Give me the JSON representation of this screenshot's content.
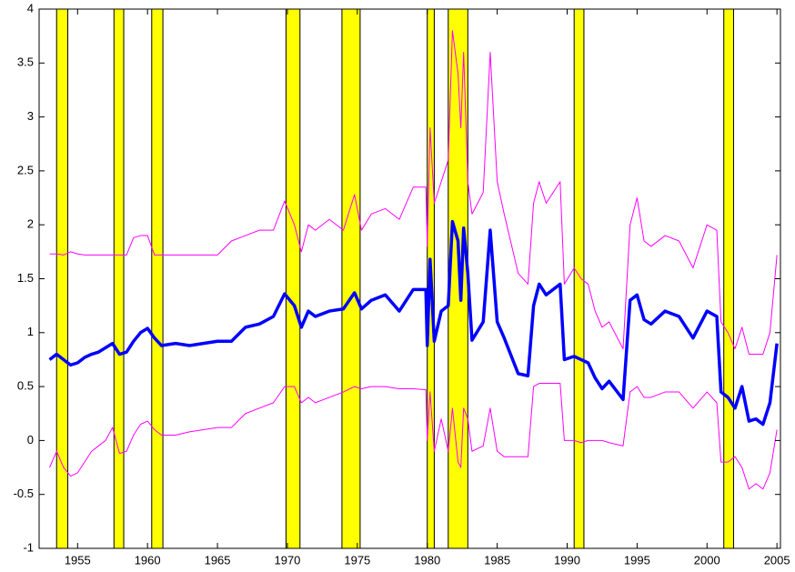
{
  "chart_data": {
    "type": "line",
    "x": [
      1953,
      1953.5,
      1954,
      1954.5,
      1955,
      1955.5,
      1956,
      1956.5,
      1957,
      1957.5,
      1958,
      1958.5,
      1959,
      1959.5,
      1960,
      1960.5,
      1961,
      1962,
      1963,
      1964,
      1965,
      1966,
      1967,
      1968,
      1969,
      1969.8,
      1970.5,
      1971,
      1971.5,
      1972,
      1973,
      1974,
      1974.8,
      1975.3,
      1976,
      1977,
      1978,
      1979,
      1979.9,
      1980.0,
      1980.2,
      1980.5,
      1981,
      1981.5,
      1981.8,
      1982.2,
      1982.4,
      1982.6,
      1982.9,
      1983.2,
      1984,
      1984.5,
      1985,
      1985.5,
      1986.5,
      1987.2,
      1987.6,
      1988,
      1988.5,
      1989.5,
      1989.8,
      1990.5,
      1991,
      1991.5,
      1992,
      1992.5,
      1993,
      1994,
      1994.5,
      1995,
      1995.5,
      1996,
      1997,
      1998,
      1999,
      2000,
      2000.7,
      2001,
      2001.5,
      2002,
      2002.5,
      2003,
      2003.5,
      2004,
      2004.5,
      2005
    ],
    "series": [
      {
        "color": "#ff00ff",
        "width": 1,
        "values": [
          1.73,
          1.73,
          1.72,
          1.75,
          1.73,
          1.72,
          1.72,
          1.72,
          1.72,
          1.72,
          1.72,
          1.72,
          1.88,
          1.9,
          1.9,
          1.72,
          1.72,
          1.72,
          1.72,
          1.72,
          1.72,
          1.85,
          1.9,
          1.95,
          1.95,
          2.22,
          2.0,
          1.75,
          2.0,
          1.95,
          2.05,
          1.95,
          2.28,
          1.95,
          2.1,
          2.15,
          2.05,
          2.35,
          2.35,
          1.8,
          2.9,
          2.2,
          2.4,
          2.6,
          3.8,
          3.4,
          2.9,
          3.6,
          2.4,
          2.1,
          2.3,
          3.6,
          2.4,
          2.1,
          1.55,
          1.45,
          2.2,
          2.4,
          2.2,
          2.4,
          1.45,
          1.6,
          1.5,
          1.45,
          1.2,
          1.05,
          1.1,
          0.85,
          2.0,
          2.25,
          1.85,
          1.8,
          1.9,
          1.85,
          1.6,
          2.0,
          1.95,
          1.1,
          1.0,
          0.85,
          1.05,
          0.8,
          0.8,
          0.8,
          1.0,
          1.72
        ]
      },
      {
        "color": "#ff00ff",
        "width": 1,
        "values": [
          -0.25,
          -0.1,
          -0.25,
          -0.33,
          -0.3,
          -0.2,
          -0.1,
          -0.05,
          0.0,
          0.12,
          -0.12,
          -0.1,
          0.05,
          0.15,
          0.18,
          0.1,
          0.05,
          0.05,
          0.08,
          0.1,
          0.12,
          0.12,
          0.25,
          0.3,
          0.35,
          0.5,
          0.5,
          0.35,
          0.4,
          0.35,
          0.4,
          0.45,
          0.5,
          0.48,
          0.5,
          0.5,
          0.48,
          0.48,
          0.47,
          0.0,
          0.45,
          -0.1,
          0.2,
          -0.1,
          0.3,
          -0.2,
          -0.25,
          0.3,
          0.2,
          -0.1,
          -0.05,
          0.3,
          -0.1,
          -0.15,
          -0.15,
          -0.15,
          0.5,
          0.53,
          0.53,
          0.53,
          0.0,
          0.0,
          -0.02,
          0.0,
          0.0,
          0.0,
          -0.02,
          -0.05,
          0.45,
          0.5,
          0.4,
          0.4,
          0.45,
          0.45,
          0.3,
          0.45,
          0.35,
          -0.2,
          -0.2,
          -0.15,
          -0.25,
          -0.45,
          -0.4,
          -0.45,
          -0.3,
          0.1
        ]
      },
      {
        "color": "#0000ff",
        "width": 3.5,
        "values": [
          0.75,
          0.8,
          0.75,
          0.7,
          0.72,
          0.77,
          0.8,
          0.82,
          0.86,
          0.9,
          0.8,
          0.82,
          0.92,
          1.0,
          1.04,
          0.95,
          0.88,
          0.9,
          0.88,
          0.9,
          0.92,
          0.92,
          1.05,
          1.08,
          1.15,
          1.36,
          1.25,
          1.05,
          1.2,
          1.15,
          1.2,
          1.22,
          1.37,
          1.22,
          1.3,
          1.35,
          1.2,
          1.4,
          1.4,
          0.88,
          1.68,
          0.92,
          1.2,
          1.25,
          2.03,
          1.85,
          1.3,
          1.97,
          1.55,
          0.93,
          1.1,
          1.95,
          1.1,
          0.95,
          0.62,
          0.6,
          1.25,
          1.45,
          1.35,
          1.45,
          0.75,
          0.78,
          0.75,
          0.72,
          0.58,
          0.48,
          0.55,
          0.38,
          1.3,
          1.35,
          1.12,
          1.08,
          1.2,
          1.15,
          0.95,
          1.2,
          1.15,
          0.45,
          0.4,
          0.3,
          0.5,
          0.18,
          0.2,
          0.15,
          0.35,
          0.9
        ]
      }
    ],
    "shaded_periods": [
      [
        1953.5,
        1954.3
      ],
      [
        1957.6,
        1958.3
      ],
      [
        1960.3,
        1961.1
      ],
      [
        1969.9,
        1970.9
      ],
      [
        1973.9,
        1975.2
      ],
      [
        1980.0,
        1980.5
      ],
      [
        1981.5,
        1982.9
      ],
      [
        1990.5,
        1991.2
      ],
      [
        2001.2,
        2001.9
      ]
    ],
    "shade_color": "#ffff00",
    "xlim": [
      1952.25,
      2005.25
    ],
    "xticks": [
      1955,
      1960,
      1965,
      1970,
      1975,
      1980,
      1985,
      1990,
      1995,
      2000,
      2005
    ],
    "ylim": [
      -1,
      4
    ],
    "yticks": [
      -1,
      -0.5,
      0,
      0.5,
      1,
      1.5,
      2,
      2.5,
      3,
      3.5,
      4
    ],
    "grid": false
  }
}
